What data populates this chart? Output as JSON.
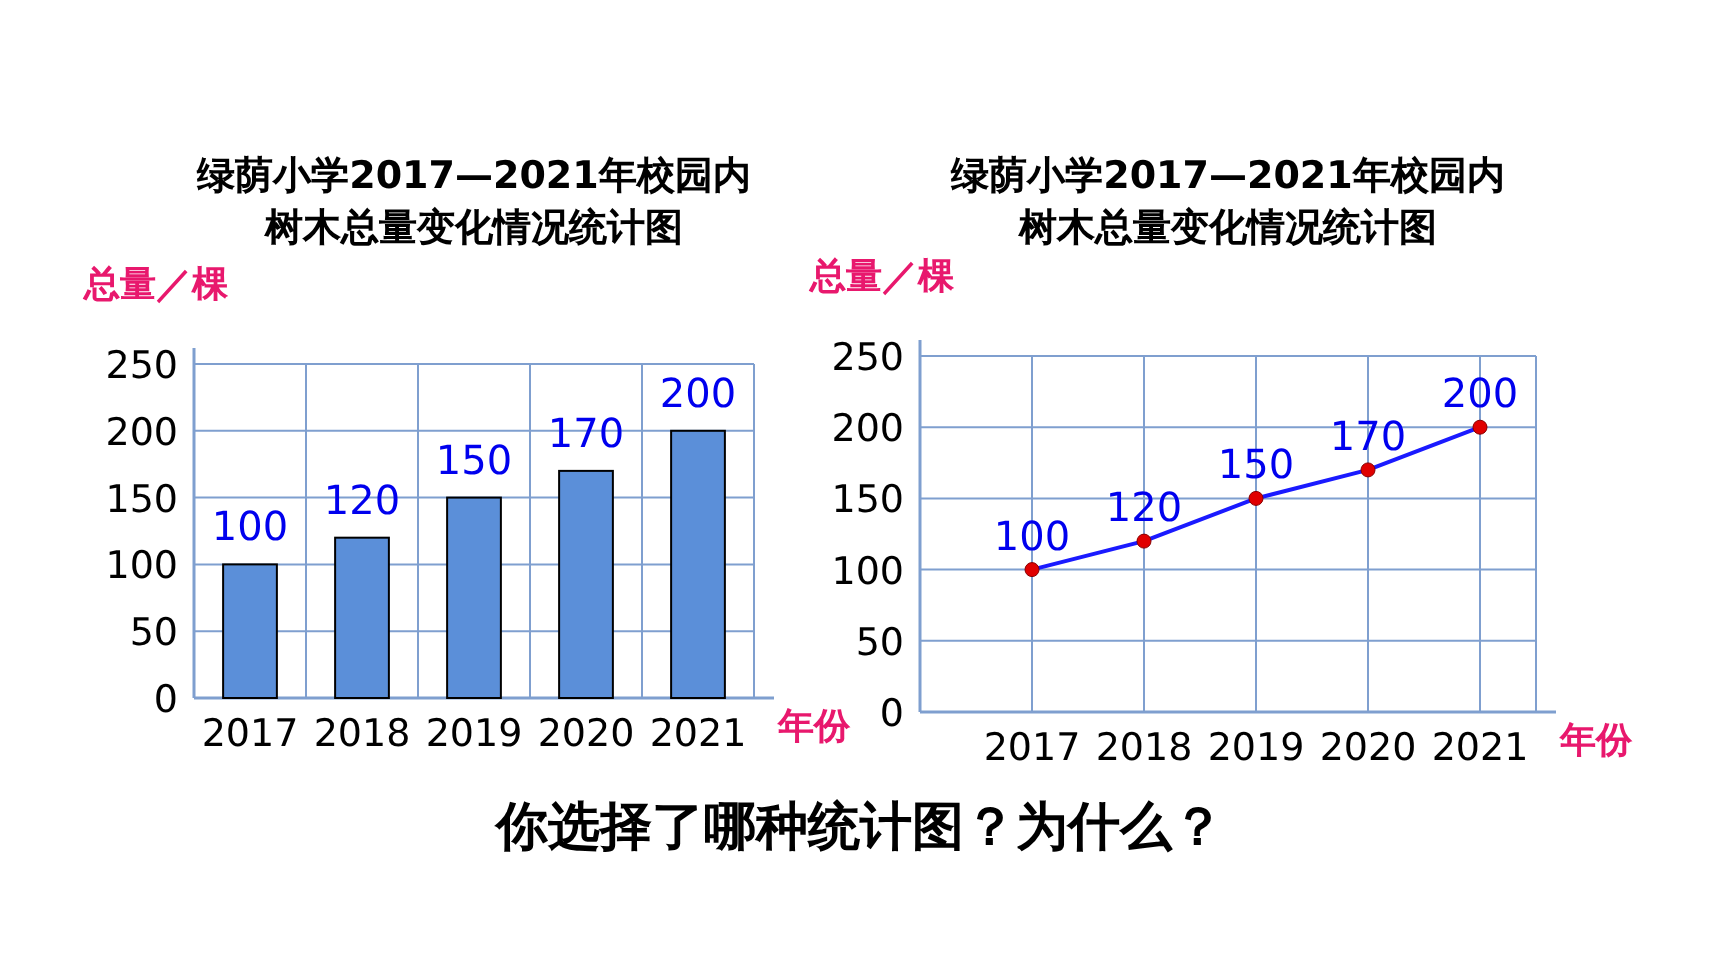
{
  "chart_data": [
    {
      "type": "bar",
      "title": "绿荫小学2017—2021年校园内",
      "subtitle": "树木总量变化情况统计图",
      "ylabel": "总量／棵",
      "xlabel": "年份",
      "categories": [
        "2017",
        "2018",
        "2019",
        "2020",
        "2021"
      ],
      "values": [
        100,
        120,
        150,
        170,
        200
      ],
      "color": "#5b8fd9",
      "ylim": [
        0,
        250
      ],
      "yticks": [
        0,
        50,
        100,
        150,
        200,
        250
      ],
      "grid": true,
      "data_labels": true,
      "annotations": [
        "你选择了哪种统计图？为什么？"
      ]
    },
    {
      "type": "line",
      "title": "绿荫小学2017—2021年校园内",
      "subtitle": "树木总量变化情况统计图",
      "ylabel": "总量／棵",
      "xlabel": "年份",
      "categories": [
        "2017",
        "2018",
        "2019",
        "2020",
        "2021"
      ],
      "series": [
        {
          "color": "#1a1aff",
          "colors": [
            "#e00000",
            "#e00000",
            "#e00000",
            "#e00000",
            "#e00000"
          ],
          "values": [
            100,
            120,
            150,
            170,
            200
          ]
        }
      ],
      "ylim": [
        0,
        250
      ],
      "yticks": [
        0,
        50,
        100,
        150,
        200,
        250
      ],
      "grid": true,
      "data_labels": true,
      "marker": "circle",
      "line_style": "solid"
    }
  ]
}
